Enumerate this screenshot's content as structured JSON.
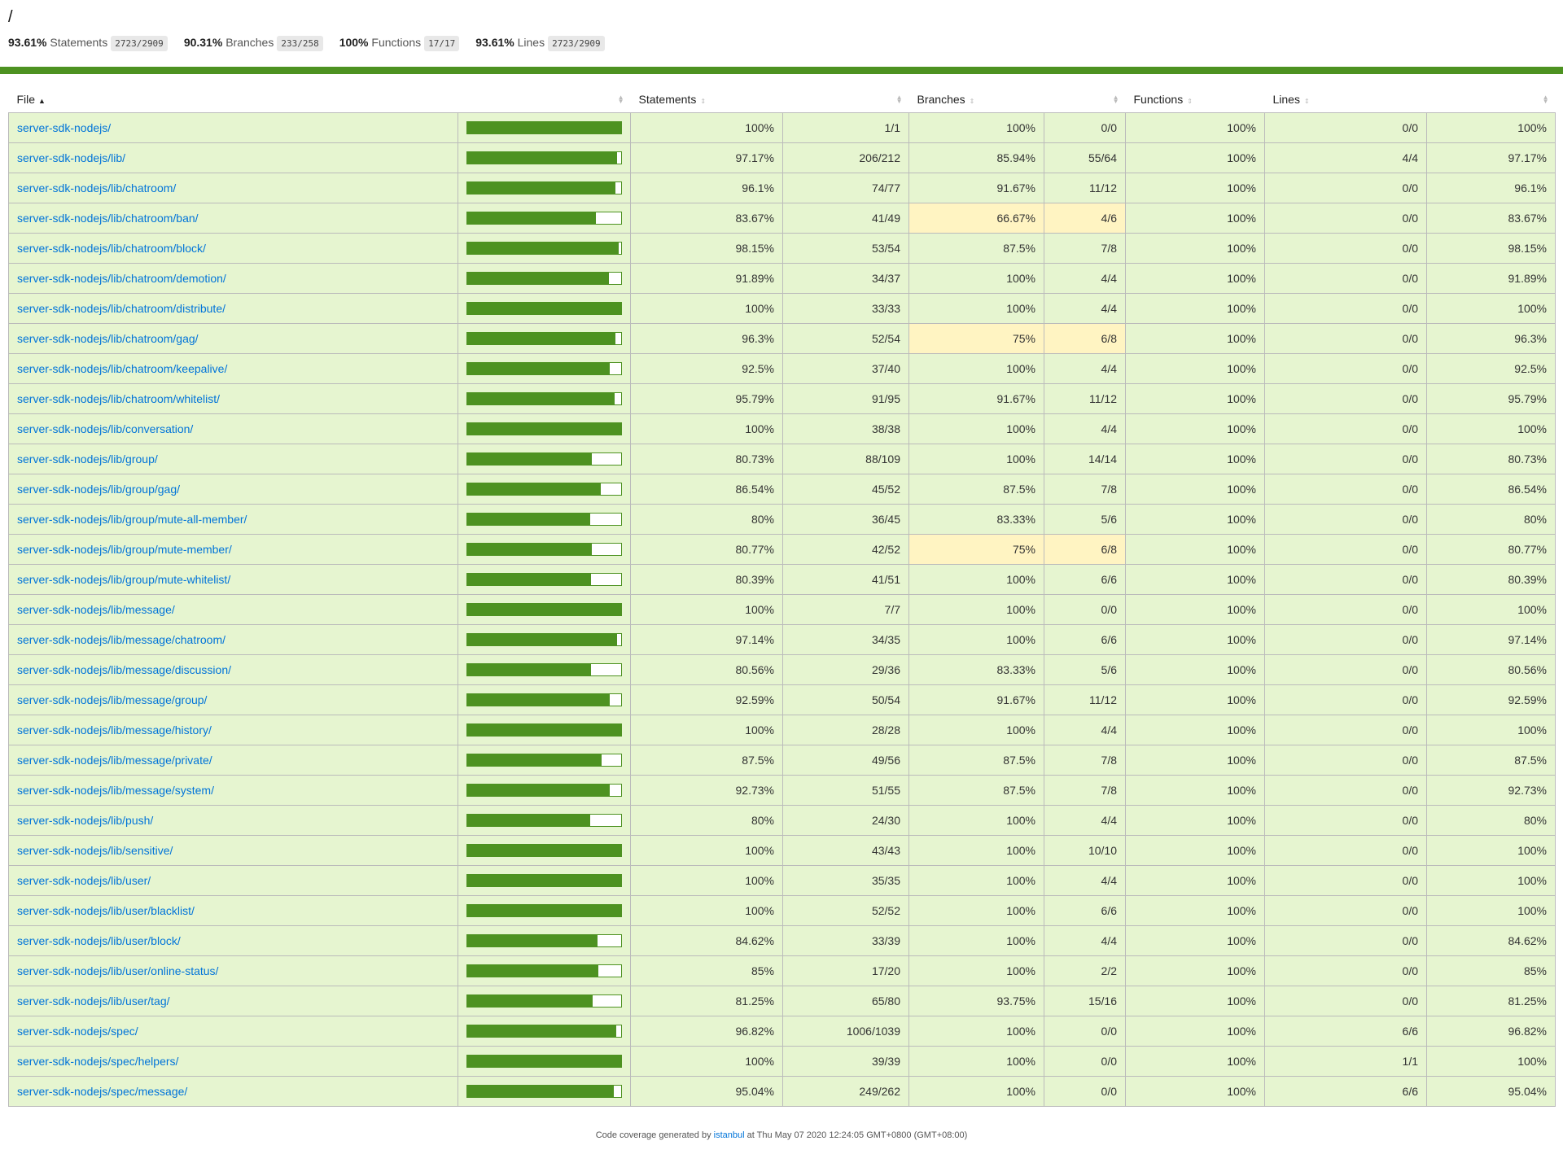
{
  "title": "/",
  "summary": [
    {
      "pct": "93.61%",
      "label": "Statements",
      "fraction": "2723/2909"
    },
    {
      "pct": "90.31%",
      "label": "Branches",
      "fraction": "233/258"
    },
    {
      "pct": "100%",
      "label": "Functions",
      "fraction": "17/17"
    },
    {
      "pct": "93.61%",
      "label": "Lines",
      "fraction": "2723/2909"
    }
  ],
  "headers": {
    "file": "File",
    "statements": "Statements",
    "branches": "Branches",
    "functions": "Functions",
    "lines": "Lines"
  },
  "colors": {
    "high": "#e6f5d0",
    "medium": "#fff4c2",
    "bar": "#4d9221",
    "link": "#0074d9"
  },
  "rows": [
    {
      "file": "server-sdk-nodejs/",
      "coverage": 100,
      "s": "100%",
      "sf": "1/1",
      "b": "100%",
      "bf": "0/0",
      "bl": "high",
      "f": "100%",
      "ff": "0/0",
      "l": "100%",
      "lf": "1/1"
    },
    {
      "file": "server-sdk-nodejs/lib/",
      "coverage": 97.17,
      "s": "97.17%",
      "sf": "206/212",
      "b": "85.94%",
      "bf": "55/64",
      "bl": "high",
      "f": "100%",
      "ff": "4/4",
      "l": "97.17%",
      "lf": "206/212"
    },
    {
      "file": "server-sdk-nodejs/lib/chatroom/",
      "coverage": 96.1,
      "s": "96.1%",
      "sf": "74/77",
      "b": "91.67%",
      "bf": "11/12",
      "bl": "high",
      "f": "100%",
      "ff": "0/0",
      "l": "96.1%",
      "lf": "74/77"
    },
    {
      "file": "server-sdk-nodejs/lib/chatroom/ban/",
      "coverage": 83.67,
      "s": "83.67%",
      "sf": "41/49",
      "b": "66.67%",
      "bf": "4/6",
      "bl": "medium",
      "f": "100%",
      "ff": "0/0",
      "l": "83.67%",
      "lf": "41/49"
    },
    {
      "file": "server-sdk-nodejs/lib/chatroom/block/",
      "coverage": 98.15,
      "s": "98.15%",
      "sf": "53/54",
      "b": "87.5%",
      "bf": "7/8",
      "bl": "high",
      "f": "100%",
      "ff": "0/0",
      "l": "98.15%",
      "lf": "53/54"
    },
    {
      "file": "server-sdk-nodejs/lib/chatroom/demotion/",
      "coverage": 91.89,
      "s": "91.89%",
      "sf": "34/37",
      "b": "100%",
      "bf": "4/4",
      "bl": "high",
      "f": "100%",
      "ff": "0/0",
      "l": "91.89%",
      "lf": "34/37"
    },
    {
      "file": "server-sdk-nodejs/lib/chatroom/distribute/",
      "coverage": 100,
      "s": "100%",
      "sf": "33/33",
      "b": "100%",
      "bf": "4/4",
      "bl": "high",
      "f": "100%",
      "ff": "0/0",
      "l": "100%",
      "lf": "33/33"
    },
    {
      "file": "server-sdk-nodejs/lib/chatroom/gag/",
      "coverage": 96.3,
      "s": "96.3%",
      "sf": "52/54",
      "b": "75%",
      "bf": "6/8",
      "bl": "medium",
      "f": "100%",
      "ff": "0/0",
      "l": "96.3%",
      "lf": "52/54"
    },
    {
      "file": "server-sdk-nodejs/lib/chatroom/keepalive/",
      "coverage": 92.5,
      "s": "92.5%",
      "sf": "37/40",
      "b": "100%",
      "bf": "4/4",
      "bl": "high",
      "f": "100%",
      "ff": "0/0",
      "l": "92.5%",
      "lf": "37/40"
    },
    {
      "file": "server-sdk-nodejs/lib/chatroom/whitelist/",
      "coverage": 95.79,
      "s": "95.79%",
      "sf": "91/95",
      "b": "91.67%",
      "bf": "11/12",
      "bl": "high",
      "f": "100%",
      "ff": "0/0",
      "l": "95.79%",
      "lf": "91/95"
    },
    {
      "file": "server-sdk-nodejs/lib/conversation/",
      "coverage": 100,
      "s": "100%",
      "sf": "38/38",
      "b": "100%",
      "bf": "4/4",
      "bl": "high",
      "f": "100%",
      "ff": "0/0",
      "l": "100%",
      "lf": "38/38"
    },
    {
      "file": "server-sdk-nodejs/lib/group/",
      "coverage": 80.73,
      "s": "80.73%",
      "sf": "88/109",
      "b": "100%",
      "bf": "14/14",
      "bl": "high",
      "f": "100%",
      "ff": "0/0",
      "l": "80.73%",
      "lf": "88/109"
    },
    {
      "file": "server-sdk-nodejs/lib/group/gag/",
      "coverage": 86.54,
      "s": "86.54%",
      "sf": "45/52",
      "b": "87.5%",
      "bf": "7/8",
      "bl": "high",
      "f": "100%",
      "ff": "0/0",
      "l": "86.54%",
      "lf": "45/52"
    },
    {
      "file": "server-sdk-nodejs/lib/group/mute-all-member/",
      "coverage": 80,
      "s": "80%",
      "sf": "36/45",
      "b": "83.33%",
      "bf": "5/6",
      "bl": "high",
      "f": "100%",
      "ff": "0/0",
      "l": "80%",
      "lf": "36/45"
    },
    {
      "file": "server-sdk-nodejs/lib/group/mute-member/",
      "coverage": 80.77,
      "s": "80.77%",
      "sf": "42/52",
      "b": "75%",
      "bf": "6/8",
      "bl": "medium",
      "f": "100%",
      "ff": "0/0",
      "l": "80.77%",
      "lf": "42/52"
    },
    {
      "file": "server-sdk-nodejs/lib/group/mute-whitelist/",
      "coverage": 80.39,
      "s": "80.39%",
      "sf": "41/51",
      "b": "100%",
      "bf": "6/6",
      "bl": "high",
      "f": "100%",
      "ff": "0/0",
      "l": "80.39%",
      "lf": "41/51"
    },
    {
      "file": "server-sdk-nodejs/lib/message/",
      "coverage": 100,
      "s": "100%",
      "sf": "7/7",
      "b": "100%",
      "bf": "0/0",
      "bl": "high",
      "f": "100%",
      "ff": "0/0",
      "l": "100%",
      "lf": "7/7"
    },
    {
      "file": "server-sdk-nodejs/lib/message/chatroom/",
      "coverage": 97.14,
      "s": "97.14%",
      "sf": "34/35",
      "b": "100%",
      "bf": "6/6",
      "bl": "high",
      "f": "100%",
      "ff": "0/0",
      "l": "97.14%",
      "lf": "34/35"
    },
    {
      "file": "server-sdk-nodejs/lib/message/discussion/",
      "coverage": 80.56,
      "s": "80.56%",
      "sf": "29/36",
      "b": "83.33%",
      "bf": "5/6",
      "bl": "high",
      "f": "100%",
      "ff": "0/0",
      "l": "80.56%",
      "lf": "29/36"
    },
    {
      "file": "server-sdk-nodejs/lib/message/group/",
      "coverage": 92.59,
      "s": "92.59%",
      "sf": "50/54",
      "b": "91.67%",
      "bf": "11/12",
      "bl": "high",
      "f": "100%",
      "ff": "0/0",
      "l": "92.59%",
      "lf": "50/54"
    },
    {
      "file": "server-sdk-nodejs/lib/message/history/",
      "coverage": 100,
      "s": "100%",
      "sf": "28/28",
      "b": "100%",
      "bf": "4/4",
      "bl": "high",
      "f": "100%",
      "ff": "0/0",
      "l": "100%",
      "lf": "28/28"
    },
    {
      "file": "server-sdk-nodejs/lib/message/private/",
      "coverage": 87.5,
      "s": "87.5%",
      "sf": "49/56",
      "b": "87.5%",
      "bf": "7/8",
      "bl": "high",
      "f": "100%",
      "ff": "0/0",
      "l": "87.5%",
      "lf": "49/56"
    },
    {
      "file": "server-sdk-nodejs/lib/message/system/",
      "coverage": 92.73,
      "s": "92.73%",
      "sf": "51/55",
      "b": "87.5%",
      "bf": "7/8",
      "bl": "high",
      "f": "100%",
      "ff": "0/0",
      "l": "92.73%",
      "lf": "51/55"
    },
    {
      "file": "server-sdk-nodejs/lib/push/",
      "coverage": 80,
      "s": "80%",
      "sf": "24/30",
      "b": "100%",
      "bf": "4/4",
      "bl": "high",
      "f": "100%",
      "ff": "0/0",
      "l": "80%",
      "lf": "24/30"
    },
    {
      "file": "server-sdk-nodejs/lib/sensitive/",
      "coverage": 100,
      "s": "100%",
      "sf": "43/43",
      "b": "100%",
      "bf": "10/10",
      "bl": "high",
      "f": "100%",
      "ff": "0/0",
      "l": "100%",
      "lf": "43/43"
    },
    {
      "file": "server-sdk-nodejs/lib/user/",
      "coverage": 100,
      "s": "100%",
      "sf": "35/35",
      "b": "100%",
      "bf": "4/4",
      "bl": "high",
      "f": "100%",
      "ff": "0/0",
      "l": "100%",
      "lf": "35/35"
    },
    {
      "file": "server-sdk-nodejs/lib/user/blacklist/",
      "coverage": 100,
      "s": "100%",
      "sf": "52/52",
      "b": "100%",
      "bf": "6/6",
      "bl": "high",
      "f": "100%",
      "ff": "0/0",
      "l": "100%",
      "lf": "52/52"
    },
    {
      "file": "server-sdk-nodejs/lib/user/block/",
      "coverage": 84.62,
      "s": "84.62%",
      "sf": "33/39",
      "b": "100%",
      "bf": "4/4",
      "bl": "high",
      "f": "100%",
      "ff": "0/0",
      "l": "84.62%",
      "lf": "33/39"
    },
    {
      "file": "server-sdk-nodejs/lib/user/online-status/",
      "coverage": 85,
      "s": "85%",
      "sf": "17/20",
      "b": "100%",
      "bf": "2/2",
      "bl": "high",
      "f": "100%",
      "ff": "0/0",
      "l": "85%",
      "lf": "17/20"
    },
    {
      "file": "server-sdk-nodejs/lib/user/tag/",
      "coverage": 81.25,
      "s": "81.25%",
      "sf": "65/80",
      "b": "93.75%",
      "bf": "15/16",
      "bl": "high",
      "f": "100%",
      "ff": "0/0",
      "l": "81.25%",
      "lf": "65/80"
    },
    {
      "file": "server-sdk-nodejs/spec/",
      "coverage": 96.82,
      "s": "96.82%",
      "sf": "1006/1039",
      "b": "100%",
      "bf": "0/0",
      "bl": "high",
      "f": "100%",
      "ff": "6/6",
      "l": "96.82%",
      "lf": "1006/1039"
    },
    {
      "file": "server-sdk-nodejs/spec/helpers/",
      "coverage": 100,
      "s": "100%",
      "sf": "39/39",
      "b": "100%",
      "bf": "0/0",
      "bl": "high",
      "f": "100%",
      "ff": "1/1",
      "l": "100%",
      "lf": "39/39"
    },
    {
      "file": "server-sdk-nodejs/spec/message/",
      "coverage": 95.04,
      "s": "95.04%",
      "sf": "249/262",
      "b": "100%",
      "bf": "0/0",
      "bl": "high",
      "f": "100%",
      "ff": "6/6",
      "l": "95.04%",
      "lf": "249/262"
    }
  ],
  "footer": {
    "prefix": "Code coverage generated by",
    "link": "istanbul",
    "suffix": "at Thu May 07 2020 12:24:05 GMT+0800 (GMT+08:00)"
  }
}
